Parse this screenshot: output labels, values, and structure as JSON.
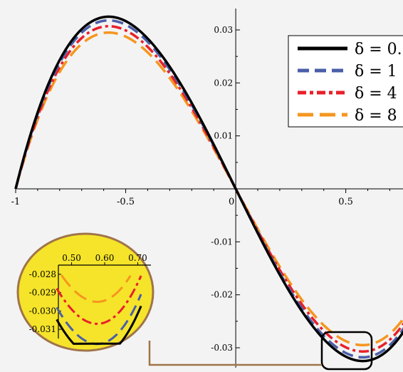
{
  "chart_data": {
    "type": "line",
    "title": "",
    "xlabel": "",
    "ylabel": "",
    "xlim": [
      -1,
      0.76
    ],
    "ylim": [
      -0.0335,
      0.0345
    ],
    "x_ticks": [
      {
        "value": -1,
        "label": "-1"
      },
      {
        "value": -0.5,
        "label": "-0.5"
      },
      {
        "value": 0,
        "label": "0"
      },
      {
        "value": 0.5,
        "label": "0.5"
      }
    ],
    "y_ticks": [
      {
        "value": 0.03,
        "label": "0.03"
      },
      {
        "value": 0.02,
        "label": "0.02"
      },
      {
        "value": 0.01,
        "label": "0.01"
      },
      {
        "value": -0.01,
        "label": "-0.01"
      },
      {
        "value": -0.02,
        "label": "-0.02"
      },
      {
        "value": -0.03,
        "label": "-0.03"
      }
    ],
    "grid": false,
    "legend_position": "top-right",
    "series": [
      {
        "name": "δ = 0.",
        "color": "#000000",
        "style": "solid",
        "amplitude": 0.0325
      },
      {
        "name": "δ = 1",
        "color": "#4a5ea8",
        "style": "dash",
        "amplitude": 0.0318
      },
      {
        "name": "δ = 4",
        "color": "#e8202a",
        "style": "dashdot",
        "amplitude": 0.0307
      },
      {
        "name": "δ = 8",
        "color": "#f5961e",
        "style": "longdash",
        "amplitude": 0.0295
      }
    ],
    "inset": {
      "x_ticks": [
        "0.50",
        "0.60",
        "0.70"
      ],
      "y_ticks": [
        "-0.028",
        "-0.029",
        "-0.030",
        "-0.031"
      ],
      "xlim": [
        0.46,
        0.74
      ],
      "ylim": [
        -0.0315,
        -0.0275
      ],
      "background": "#f5e42a",
      "border_color": "#a0744a"
    }
  }
}
